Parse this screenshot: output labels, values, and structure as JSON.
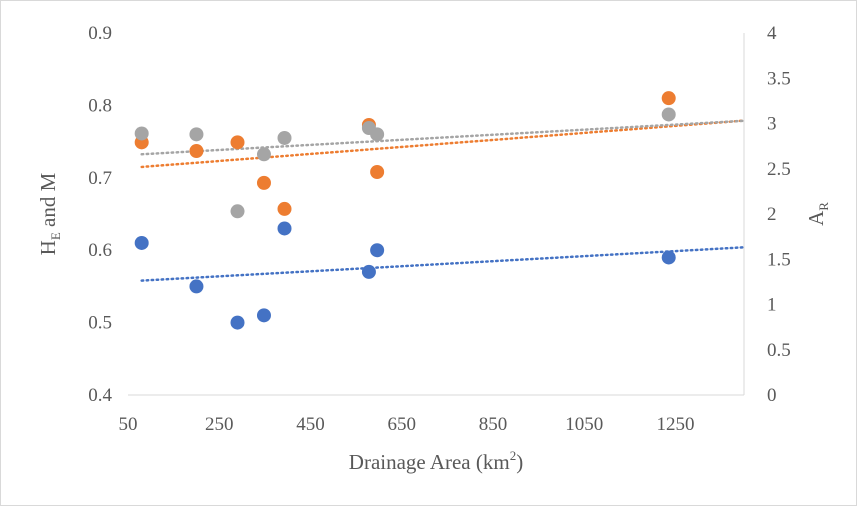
{
  "chart_data": {
    "type": "scatter",
    "title": "",
    "xlabel": {
      "main": "Drainage Area (km",
      "sup": "2",
      "tail": ")"
    },
    "ylabel_left": {
      "main": "H",
      "sub": "E",
      "tail": " and M"
    },
    "ylabel_right": {
      "main": "A",
      "sub": "R"
    },
    "x_ticks": [
      "50",
      "250",
      "450",
      "650",
      "850",
      "1050",
      "1250"
    ],
    "x_tick_values": [
      50,
      250,
      450,
      650,
      850,
      1050,
      1250
    ],
    "y_left_ticks": [
      "0.4",
      "0.5",
      "0.6",
      "0.7",
      "0.8",
      "0.9"
    ],
    "y_left_tick_values": [
      0.4,
      0.5,
      0.6,
      0.7,
      0.8,
      0.9
    ],
    "y_right_ticks": [
      "0",
      "0.5",
      "1",
      "1.5",
      "2",
      "2.5",
      "3",
      "3.5",
      "4"
    ],
    "y_right_tick_values": [
      0,
      0.5,
      1,
      1.5,
      2,
      2.5,
      3,
      3.5,
      4
    ],
    "xlim": [
      50,
      1400
    ],
    "ylim_left": [
      0.4,
      0.9
    ],
    "ylim_right": [
      0,
      4
    ],
    "grid": false,
    "legend": "none",
    "series": [
      {
        "color": "#4472c4",
        "axis": "left",
        "x": [
          80,
          200,
          290,
          348,
          393,
          578,
          596,
          1235
        ],
        "y": [
          0.61,
          0.55,
          0.5,
          0.51,
          0.63,
          0.57,
          0.6,
          0.59
        ],
        "trendline": {
          "x": [
            80,
            1400
          ],
          "y": [
            0.558,
            0.604
          ]
        }
      },
      {
        "color": "#ed7d31",
        "axis": "left",
        "x": [
          80,
          200,
          290,
          348,
          393,
          578,
          596,
          1235
        ],
        "y": [
          0.749,
          0.737,
          0.749,
          0.693,
          0.657,
          0.773,
          0.708,
          0.81
        ],
        "trendline": {
          "x": [
            80,
            1400
          ],
          "y": [
            0.715,
            0.779
          ]
        }
      },
      {
        "color": "#a5a5a5",
        "axis": "right",
        "x": [
          80,
          200,
          290,
          348,
          393,
          578,
          596,
          1235
        ],
        "y": [
          2.89,
          2.88,
          2.03,
          2.66,
          2.84,
          2.95,
          2.88,
          3.1
        ],
        "trendline": {
          "x": [
            80,
            1400
          ],
          "y": [
            2.66,
            3.03
          ]
        }
      }
    ]
  }
}
